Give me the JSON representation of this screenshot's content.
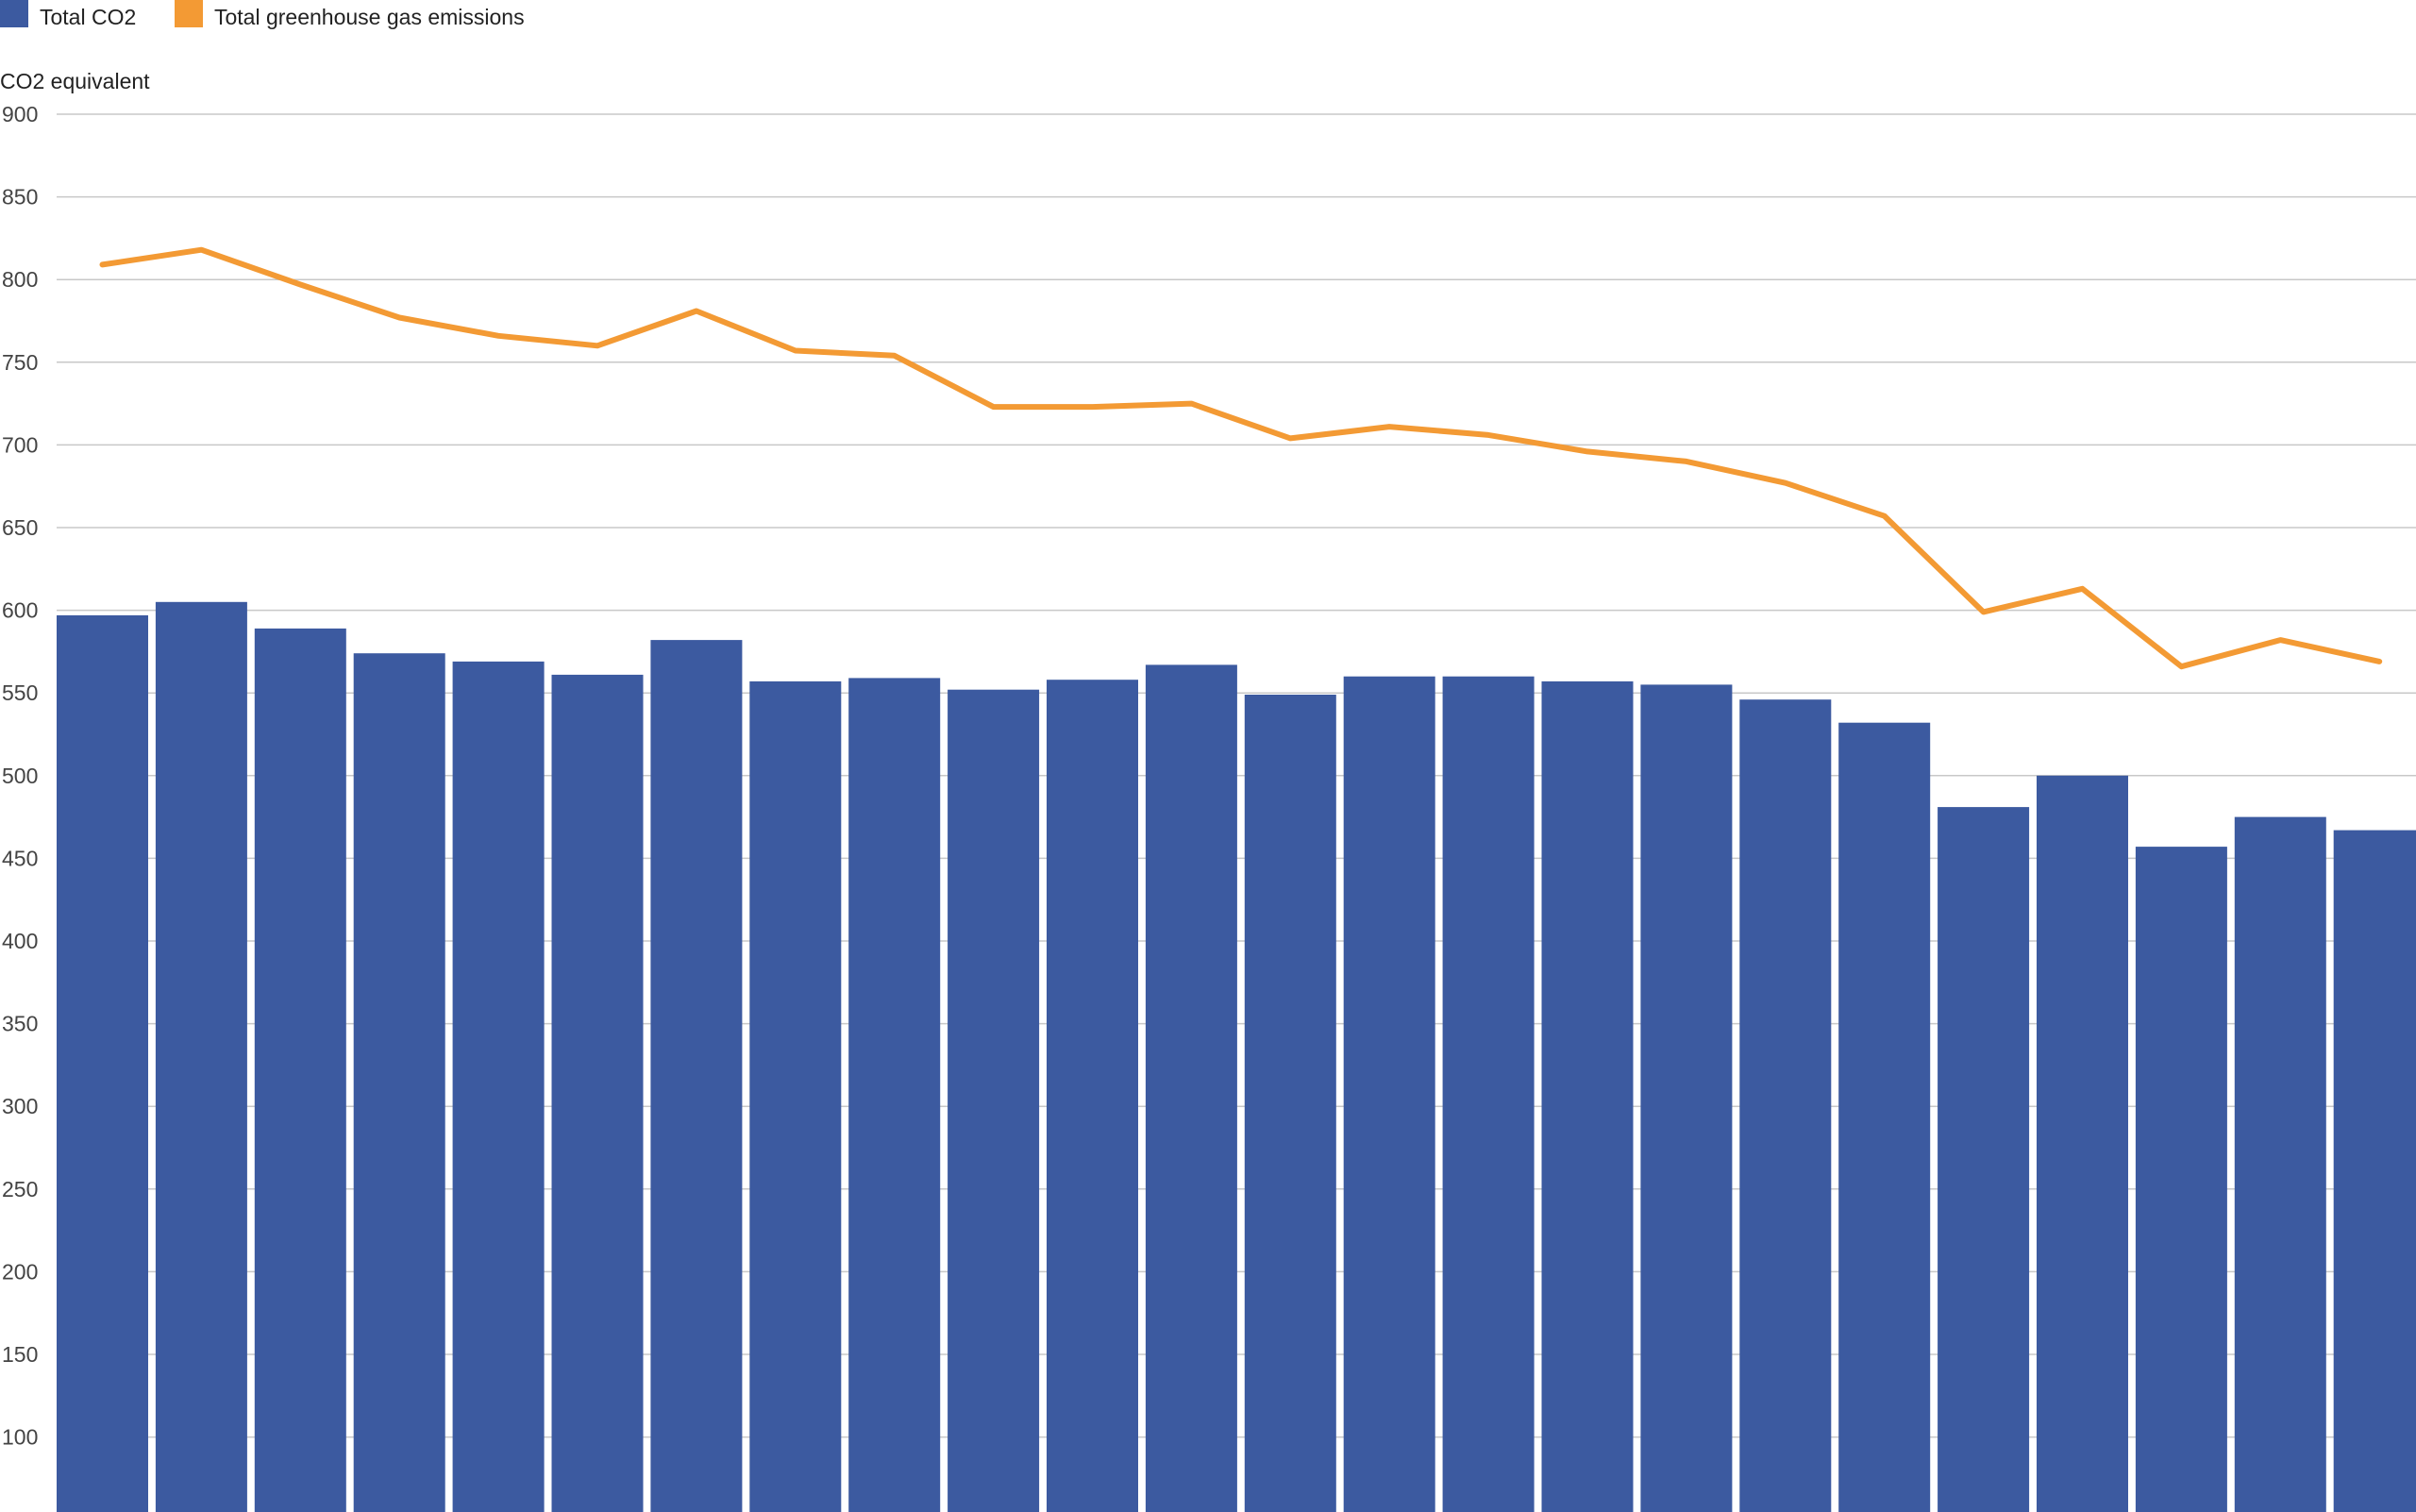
{
  "chart_data": {
    "type": "bar",
    "ylabel": "CO2 equivalent",
    "ylim": [
      55,
      900
    ],
    "yticks": [
      100,
      150,
      200,
      250,
      300,
      350,
      400,
      450,
      500,
      550,
      600,
      650,
      700,
      750,
      800,
      850,
      900
    ],
    "grid": true,
    "legend_position": "top-left",
    "series": [
      {
        "name": "Total CO2",
        "kind": "bar",
        "color": "#3c5aa0",
        "values": [
          597,
          605,
          589,
          574,
          569,
          561,
          582,
          557,
          559,
          552,
          558,
          567,
          549,
          560,
          560,
          557,
          555,
          546,
          532,
          481,
          500,
          457,
          475,
          467
        ]
      },
      {
        "name": "Total greenhouse gas emissions",
        "kind": "line",
        "color": "#f39a34",
        "values": [
          809,
          818,
          797,
          777,
          766,
          760,
          781,
          757,
          754,
          723,
          723,
          725,
          704,
          711,
          706,
          696,
          690,
          677,
          657,
          599,
          613,
          566,
          582,
          569
        ]
      }
    ]
  }
}
